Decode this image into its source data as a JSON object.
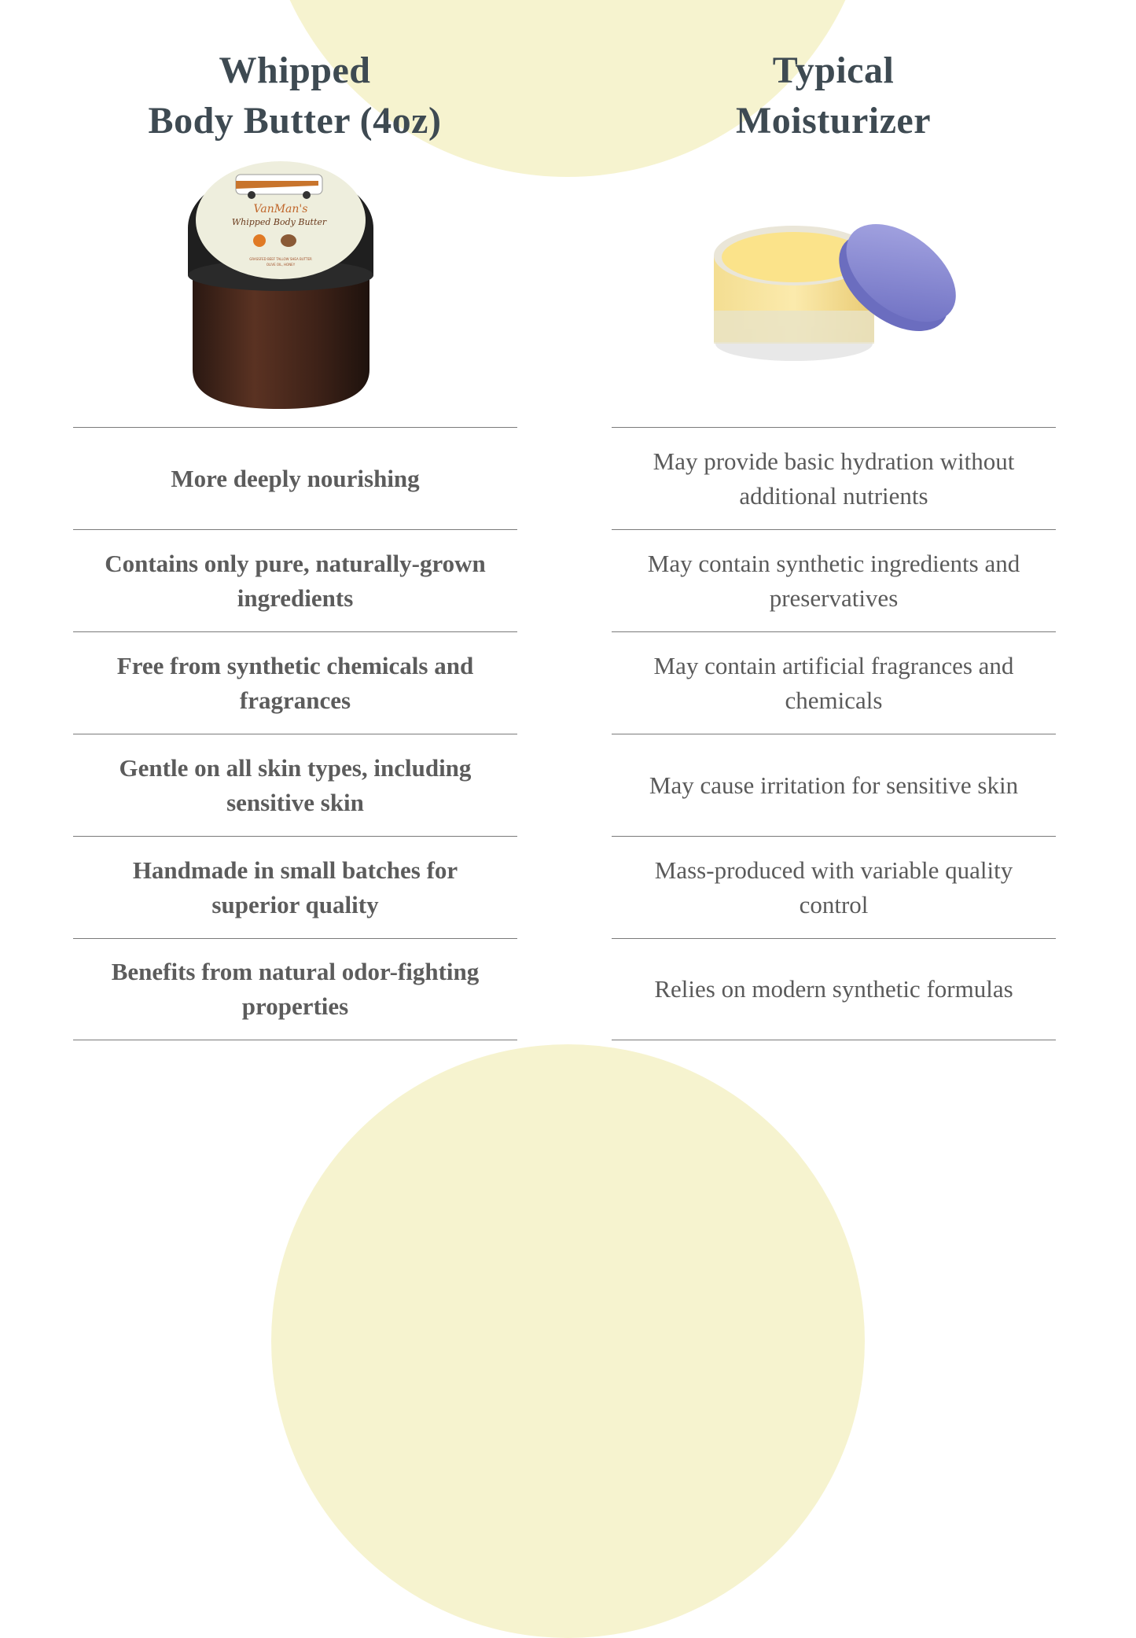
{
  "left": {
    "title_line1": "Whipped",
    "title_line2": "Body Butter (4oz)",
    "product_label": {
      "brand": "VanMan's",
      "name": "Whipped Body Butter",
      "ingredients_line1": "GRASSFED BEEF TALLOW SHEA BUTTER",
      "ingredients_line2": "OLIVE OIL, HONEY"
    },
    "rows": [
      "More deeply nourishing",
      "Contains only pure, naturally-grown ingredients",
      "Free from synthetic chemicals and fragrances",
      "Gentle on all skin types, including sensitive skin",
      "Handmade in small batches for superior quality",
      "Benefits from natural odor-fighting properties"
    ]
  },
  "right": {
    "title_line1": "Typical",
    "title_line2": "Moisturizer",
    "rows": [
      "May provide basic hydration without additional nutrients",
      "May contain synthetic ingredients and preservatives",
      "May contain artificial fragrances and chemicals",
      "May cause irritation for sensitive skin",
      "Mass-produced with variable quality control",
      "Relies on modern synthetic formulas"
    ]
  },
  "colors": {
    "accent_blob": "#f6f3cf",
    "heading": "#3e4a52",
    "text": "#5a5a5a"
  }
}
